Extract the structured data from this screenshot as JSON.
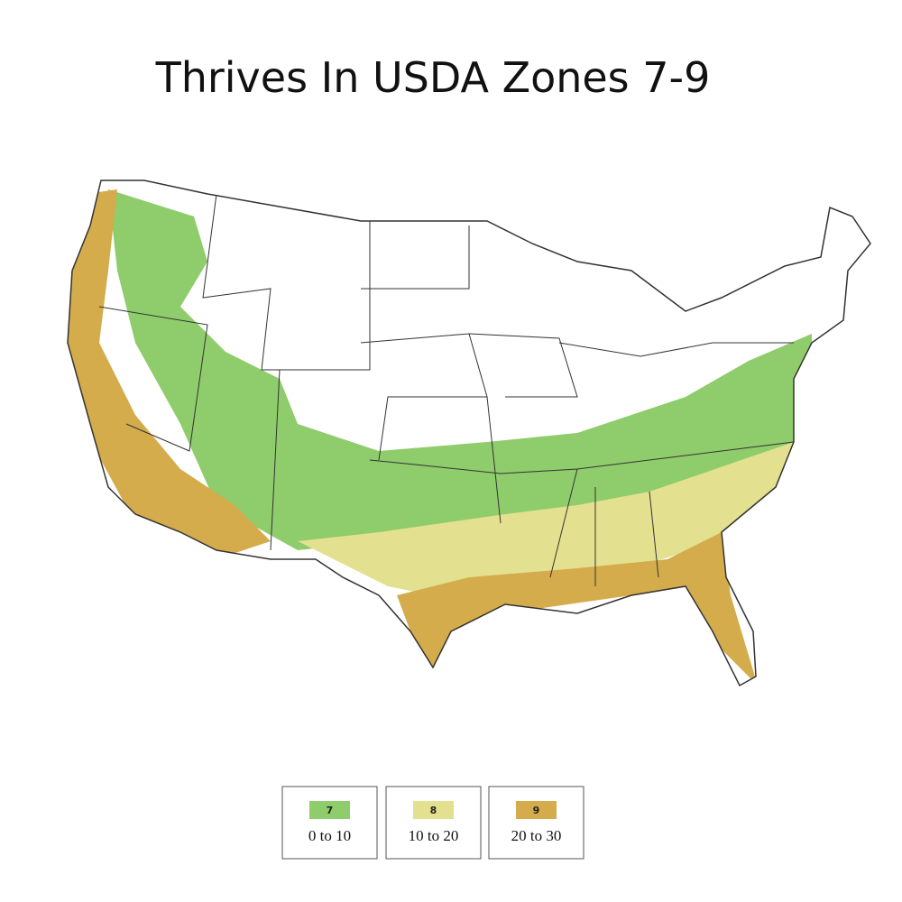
{
  "title": "Thrives In USDA Zones 7-9",
  "legend": [
    {
      "zone": "7",
      "range": "0 to 10",
      "color": "#8fcc6b"
    },
    {
      "zone": "8",
      "range": "10 to 20",
      "color": "#e3e08f"
    },
    {
      "zone": "9",
      "range": "20 to 30",
      "color": "#d4ac4c"
    }
  ]
}
